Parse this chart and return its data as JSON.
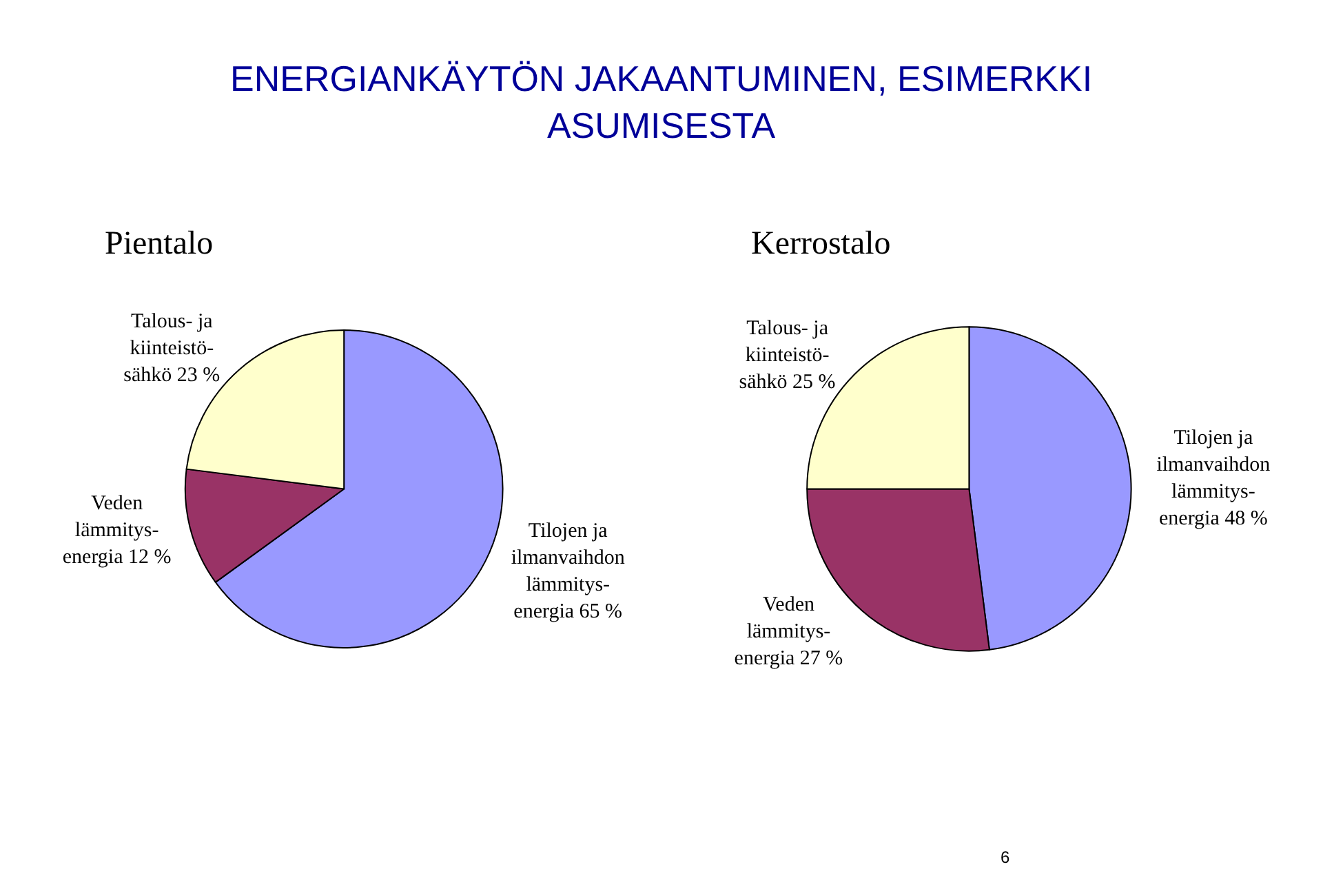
{
  "chart_data": [
    {
      "type": "pie",
      "title": "ENERGIANKÄYTÖN JAKAANTUMINEN, ESIMERKKI\nASUMISESTA",
      "subtitle": "Pientalo",
      "categories": [
        "Tilojen ja\nilmanvaihdon\nlämmitys-\nenergia 65 %",
        "Veden\nlämmitys-\nenergia 12 %",
        "Talous- ja\nkiinteistö-\nsähkö 23 %"
      ],
      "values": [
        65,
        12,
        23
      ],
      "colors": [
        "#9999ff",
        "#993366",
        "#ffffcc"
      ],
      "legend": false
    },
    {
      "type": "pie",
      "subtitle": "Kerrostalo",
      "categories": [
        "Tilojen ja\nilmanvaihdon\nlämmitys-\nenergia 48 %",
        "Veden\nlämmitys-\nenergia 27 %",
        "Talous- ja\nkiinteistö-\nsähkö 25 %"
      ],
      "values": [
        48,
        27,
        25
      ],
      "colors": [
        "#9999ff",
        "#993366",
        "#ffffcc"
      ],
      "legend": false,
      "annotations": [
        "6"
      ]
    }
  ]
}
